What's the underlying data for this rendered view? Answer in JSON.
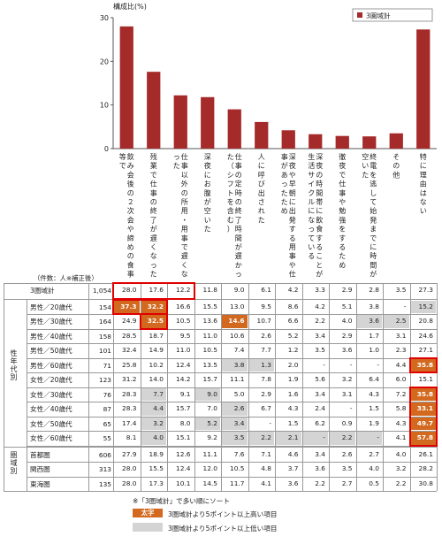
{
  "chart_data": {
    "type": "bar",
    "ylabel": "構成比(%)",
    "ylim": [
      0,
      30
    ],
    "yticks": [
      0,
      10,
      20,
      30
    ],
    "legend": "3圏域計",
    "legend_position": "top-right",
    "bar_color": "#a52a2a",
    "categories": [
      "飲み会後の２次会や締めの食事等で",
      "残業で仕事の終了が遅くなった",
      "仕事以外の所用・用事で遅くなった",
      "深夜にお腹が空いた",
      "仕事の定時の終了時間が遅かった（シフトを含む）",
      "人に呼び出された",
      "深夜や早朝に出発する用事や仕事があったため",
      "深夜の時間帯に飲食することが生活サイクルになっている",
      "徹夜で仕事や勉強をするため",
      "終電を逃して始発までに時間が空いた",
      "その他",
      "特に理由はない"
    ],
    "values": [
      28.0,
      17.6,
      12.2,
      11.8,
      9.0,
      6.1,
      4.2,
      3.3,
      2.9,
      2.8,
      3.5,
      27.3
    ]
  },
  "table": {
    "count_header": "（件数：人※補正後）",
    "total_row": {
      "label": "3圏域計",
      "n": "1,054",
      "values": [
        "28.0",
        "17.6",
        "12.2",
        "11.8",
        "9.0",
        "6.1",
        "4.2",
        "3.3",
        "2.9",
        "2.8",
        "3.5",
        "27.3"
      ]
    },
    "group1_label": "性年代別",
    "group1": [
      {
        "label": "男性／20歳代",
        "n": "154",
        "values": [
          "37.3",
          "32.2",
          "16.6",
          "15.5",
          "13.0",
          "9.5",
          "8.6",
          "4.2",
          "5.1",
          "3.8",
          "-",
          "15.2"
        ]
      },
      {
        "label": "男性／30歳代",
        "n": "164",
        "values": [
          "24.9",
          "32.5",
          "10.5",
          "13.6",
          "14.6",
          "10.7",
          "6.6",
          "2.2",
          "4.0",
          "3.6",
          "2.5",
          "20.8"
        ]
      },
      {
        "label": "男性／40歳代",
        "n": "158",
        "values": [
          "28.5",
          "18.7",
          "9.5",
          "11.0",
          "10.6",
          "2.6",
          "5.2",
          "3.4",
          "2.9",
          "1.7",
          "3.1",
          "24.6"
        ]
      },
      {
        "label": "男性／50歳代",
        "n": "101",
        "values": [
          "32.4",
          "14.9",
          "11.0",
          "10.5",
          "7.4",
          "7.7",
          "1.2",
          "3.5",
          "3.6",
          "1.0",
          "2.3",
          "27.1"
        ]
      },
      {
        "label": "男性／60歳代",
        "n": "71",
        "values": [
          "25.8",
          "10.2",
          "12.4",
          "13.5",
          "3.8",
          "1.3",
          "2.0",
          "-",
          "-",
          "-",
          "4.4",
          "35.8"
        ]
      },
      {
        "label": "女性／20歳代",
        "n": "123",
        "values": [
          "31.2",
          "14.0",
          "14.2",
          "15.7",
          "11.1",
          "7.8",
          "1.9",
          "5.6",
          "3.2",
          "6.4",
          "6.0",
          "15.1"
        ]
      },
      {
        "label": "女性／30歳代",
        "n": "76",
        "values": [
          "28.3",
          "7.7",
          "9.1",
          "9.0",
          "5.0",
          "2.9",
          "1.6",
          "3.4",
          "3.1",
          "4.3",
          "7.2",
          "35.8"
        ]
      },
      {
        "label": "女性／40歳代",
        "n": "87",
        "values": [
          "28.3",
          "4.4",
          "15.7",
          "7.0",
          "2.6",
          "6.7",
          "4.3",
          "2.4",
          "-",
          "1.5",
          "5.8",
          "33.1"
        ]
      },
      {
        "label": "女性／50歳代",
        "n": "65",
        "values": [
          "17.4",
          "3.2",
          "8.0",
          "5.2",
          "3.4",
          "-",
          "1.5",
          "6.2",
          "0.9",
          "1.9",
          "4.3",
          "49.7"
        ]
      },
      {
        "label": "女性／60歳代",
        "n": "55",
        "values": [
          "8.1",
          "4.0",
          "15.1",
          "9.2",
          "3.5",
          "2.2",
          "2.1",
          "-",
          "2.2",
          "-",
          "4.1",
          "57.8"
        ]
      }
    ],
    "group2_label": "圏域別",
    "group2": [
      {
        "label": "首都圏",
        "n": "606",
        "values": [
          "27.9",
          "18.9",
          "12.6",
          "11.1",
          "7.6",
          "7.1",
          "4.6",
          "3.4",
          "2.6",
          "2.7",
          "4.0",
          "26.1"
        ]
      },
      {
        "label": "関西圏",
        "n": "313",
        "values": [
          "28.0",
          "15.5",
          "12.4",
          "12.0",
          "10.5",
          "4.8",
          "3.7",
          "3.6",
          "3.5",
          "4.0",
          "3.2",
          "28.2"
        ]
      },
      {
        "label": "東海圏",
        "n": "135",
        "values": [
          "28.0",
          "17.3",
          "10.1",
          "14.5",
          "11.7",
          "4.1",
          "3.6",
          "2.2",
          "2.7",
          "0.5",
          "2.2",
          "30.8"
        ]
      }
    ],
    "highlight_orange": [
      [
        0,
        0
      ],
      [
        0,
        1
      ],
      [
        1,
        1
      ],
      [
        1,
        4
      ],
      [
        4,
        11
      ],
      [
        6,
        11
      ],
      [
        7,
        11
      ],
      [
        8,
        11
      ],
      [
        9,
        11
      ]
    ],
    "highlight_gray": [
      [
        0,
        11
      ],
      [
        1,
        9
      ],
      [
        1,
        10
      ],
      [
        4,
        4
      ],
      [
        4,
        5
      ],
      [
        6,
        1
      ],
      [
        6,
        3
      ],
      [
        7,
        1
      ],
      [
        7,
        4
      ],
      [
        8,
        1
      ],
      [
        8,
        3
      ],
      [
        8,
        4
      ],
      [
        9,
        1
      ],
      [
        9,
        4
      ],
      [
        9,
        5
      ],
      [
        9,
        6
      ],
      [
        9,
        7
      ],
      [
        9,
        8
      ],
      [
        9,
        9
      ]
    ]
  },
  "notes": {
    "sort_note": "※「3圏域計」で多い順にソート",
    "orange_label": "太字",
    "orange_desc": "3圏域計より5ポイント以上高い項目",
    "gray_desc": "3圏域計より5ポイント以上低い項目"
  },
  "colors": {
    "bar": "#a52a2a",
    "orange": "#d2691e",
    "gray": "#d4d4d4",
    "red_box": "#e00000"
  }
}
